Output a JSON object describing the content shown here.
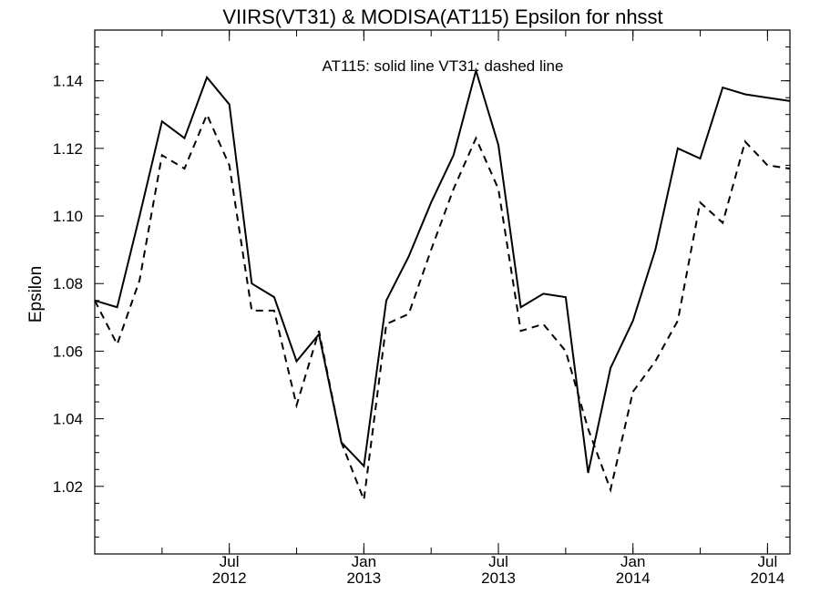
{
  "chart_data": {
    "type": "line",
    "title": "VIIRS(VT31) & MODISA(AT115)  Epsilon for nhsst",
    "xlabel": "",
    "ylabel": "Epsilon",
    "annotation": "AT115: solid line   VT31: dashed line",
    "xlim": [
      "2012-01",
      "2014-08"
    ],
    "ylim": [
      1.0,
      1.155
    ],
    "yticks": [
      1.02,
      1.04,
      1.06,
      1.08,
      1.1,
      1.12,
      1.14
    ],
    "ytick_labels": [
      "1.02",
      "1.04",
      "1.06",
      "1.08",
      "1.10",
      "1.12",
      "1.14"
    ],
    "xticks": [
      {
        "month": "Jul",
        "year": "2012"
      },
      {
        "month": "Jan",
        "year": "2013"
      },
      {
        "month": "Jul",
        "year": "2013"
      },
      {
        "month": "Jan",
        "year": "2014"
      },
      {
        "month": "Jul",
        "year": "2014"
      }
    ],
    "minor_xticks": [
      "2012-01",
      "2012-04",
      "2012-07",
      "2012-10",
      "2013-01",
      "2013-04",
      "2013-07",
      "2013-10",
      "2014-01",
      "2014-04",
      "2014-07"
    ],
    "series": [
      {
        "style": "solid",
        "x": [
          "2012-01-01",
          "2012-02-01",
          "2012-03-01",
          "2012-04-01",
          "2012-05-01",
          "2012-06-01",
          "2012-07-01",
          "2012-08-01",
          "2012-09-01",
          "2012-10-01",
          "2012-11-01",
          "2012-12-01",
          "2013-01-01",
          "2013-02-01",
          "2013-03-01",
          "2013-04-01",
          "2013-05-01",
          "2013-06-01",
          "2013-07-01",
          "2013-08-01",
          "2013-09-01",
          "2013-10-01",
          "2013-11-01",
          "2013-12-01",
          "2014-01-01",
          "2014-02-01",
          "2014-03-01",
          "2014-04-01",
          "2014-05-01",
          "2014-06-01",
          "2014-07-01",
          "2014-08-01"
        ],
        "values": [
          1.075,
          1.073,
          1.1,
          1.128,
          1.123,
          1.141,
          1.133,
          1.08,
          1.076,
          1.057,
          1.065,
          1.033,
          1.026,
          1.075,
          1.088,
          1.104,
          1.118,
          1.143,
          1.121,
          1.073,
          1.077,
          1.076,
          1.024,
          1.055,
          1.069,
          1.09,
          1.12,
          1.117,
          1.138,
          1.136,
          1.135,
          1.134
        ]
      },
      {
        "style": "dashed",
        "x": [
          "2012-01-01",
          "2012-02-01",
          "2012-03-01",
          "2012-04-01",
          "2012-05-01",
          "2012-06-01",
          "2012-07-01",
          "2012-08-01",
          "2012-09-01",
          "2012-10-01",
          "2012-11-01",
          "2012-12-01",
          "2013-01-01",
          "2013-02-01",
          "2013-03-01",
          "2013-04-01",
          "2013-05-01",
          "2013-06-01",
          "2013-07-01",
          "2013-08-01",
          "2013-09-01",
          "2013-10-01",
          "2013-11-01",
          "2013-12-01",
          "2014-01-01",
          "2014-02-01",
          "2014-03-01",
          "2014-04-01",
          "2014-05-01",
          "2014-06-01",
          "2014-07-01",
          "2014-08-01"
        ],
        "values": [
          1.075,
          1.062,
          1.081,
          1.118,
          1.114,
          1.13,
          1.115,
          1.072,
          1.072,
          1.044,
          1.066,
          1.033,
          1.016,
          1.068,
          1.071,
          1.09,
          1.108,
          1.123,
          1.108,
          1.066,
          1.068,
          1.06,
          1.037,
          1.019,
          1.048,
          1.057,
          1.069,
          1.104,
          1.098,
          1.122,
          1.115,
          1.114
        ]
      }
    ],
    "grid": false,
    "legend": "none"
  }
}
